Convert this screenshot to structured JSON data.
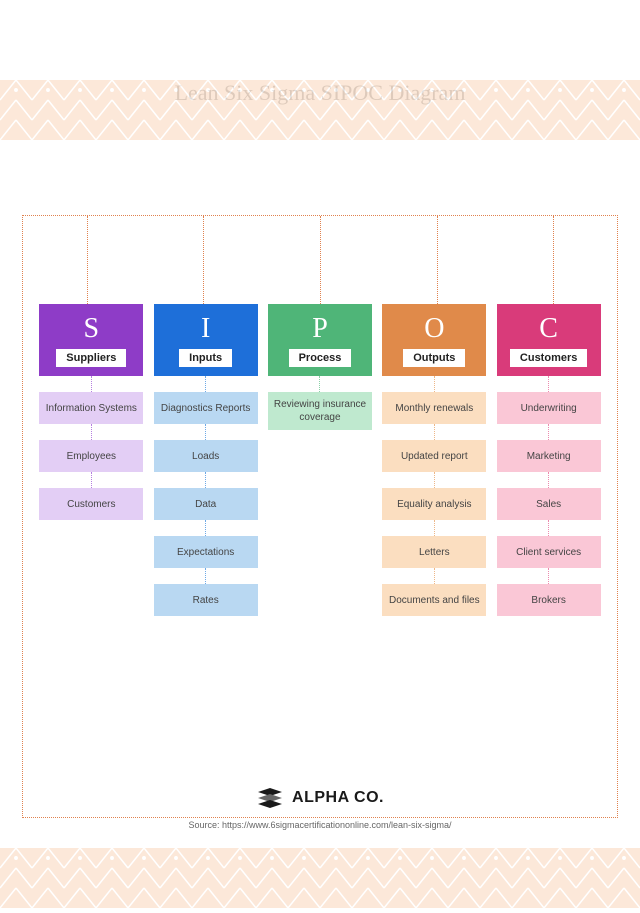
{
  "title": "Lean Six Sigma SIPOC Diagram",
  "border_color": "#e0824f",
  "pattern_color": "#fce5d3",
  "columns": [
    {
      "letter": "S",
      "label": "Suppliers",
      "header_bg": "#8e3cc7",
      "item_bg": "#e3cef5",
      "conn_color": "#b67fe0",
      "items": [
        "Information Systems",
        "Employees",
        "Customers"
      ]
    },
    {
      "letter": "I",
      "label": "Inputs",
      "header_bg": "#1e6fd9",
      "item_bg": "#b9d8f2",
      "conn_color": "#6ea9e6",
      "items": [
        "Diagnostics Reports",
        "Loads",
        "Data",
        "Expectations",
        "Rates"
      ]
    },
    {
      "letter": "P",
      "label": "Process",
      "header_bg": "#4fb578",
      "item_bg": "#bfe9cf",
      "conn_color": "#8ad0a6",
      "items": [
        "Reviewing insurance coverage"
      ]
    },
    {
      "letter": "O",
      "label": "Outputs",
      "header_bg": "#e08a4a",
      "item_bg": "#fbdec0",
      "conn_color": "#edb788",
      "items": [
        "Monthly renewals",
        "Updated report",
        "Equality analysis",
        "Letters",
        "Documents and files"
      ]
    },
    {
      "letter": "C",
      "label": "Customers",
      "header_bg": "#d93b7a",
      "item_bg": "#fac7d6",
      "conn_color": "#ec8aae",
      "items": [
        "Underwriting",
        "Marketing",
        "Sales",
        "Client services",
        "Brokers"
      ]
    }
  ],
  "logo_text": "ALPHA CO.",
  "logo_color": "#1a1a1a",
  "source_label": "Source: https://www.6sigmacertificationonline.com/lean-six-sigma/"
}
